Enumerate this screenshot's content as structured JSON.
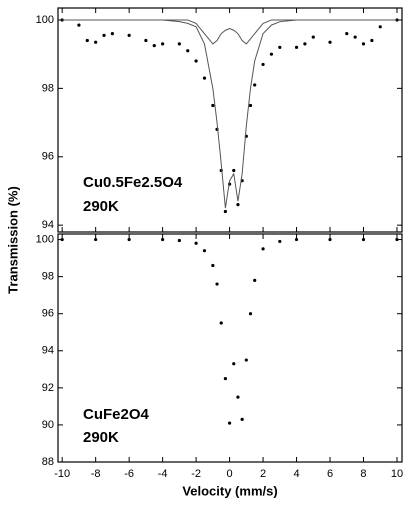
{
  "chart_data": [
    {
      "type": "scatter",
      "y_label": "Transmission (%)",
      "annotations": [
        "Cu0.5Fe2.5O4",
        "290K"
      ],
      "xlim": [
        -10.25,
        10.3
      ],
      "ylim": [
        93.8,
        100.35
      ],
      "yticks": [
        94,
        96,
        98,
        100
      ],
      "x": [
        -10,
        -9,
        -8.5,
        -8,
        -7.5,
        -7,
        -6,
        -5,
        -4.5,
        -4,
        -3,
        -2.5,
        -2,
        -1.5,
        -1,
        -0.75,
        -0.5,
        -0.25,
        0,
        0.25,
        0.5,
        0.75,
        1,
        1.25,
        1.5,
        2,
        2.5,
        3,
        4,
        4.5,
        5,
        6,
        7,
        7.5,
        8,
        8.5,
        9,
        10
      ],
      "series": [
        {
          "style": "points",
          "color": "#000000",
          "values": [
            100,
            99.85,
            99.4,
            99.35,
            99.55,
            99.6,
            99.55,
            99.4,
            99.25,
            99.3,
            99.3,
            99.1,
            98.8,
            98.3,
            97.5,
            96.8,
            95.6,
            94.4,
            95.2,
            95.6,
            94.6,
            95.3,
            96.6,
            97.5,
            98.1,
            98.7,
            99.0,
            99.2,
            99.2,
            99.3,
            99.5,
            99.35,
            99.6,
            99.5,
            99.3,
            99.4,
            99.8,
            100
          ]
        },
        {
          "style": "line",
          "color": "#555555",
          "values": [
            100,
            100,
            100,
            100,
            100,
            100,
            100,
            100,
            100,
            100,
            100,
            100,
            99.9,
            99.6,
            99.3,
            99.4,
            99.6,
            99.7,
            99.75,
            99.7,
            99.6,
            99.4,
            99.3,
            99.45,
            99.6,
            99.9,
            100,
            100,
            100,
            100,
            100,
            100,
            100,
            100,
            100,
            100,
            100,
            100
          ]
        },
        {
          "style": "line",
          "color": "#555555",
          "values": [
            100,
            100,
            100,
            100,
            100,
            100,
            100,
            100,
            100,
            100,
            99.95,
            99.9,
            99.8,
            99.3,
            98.0,
            97.0,
            95.8,
            94.5,
            95.3,
            95.5,
            94.7,
            95.5,
            96.9,
            98.0,
            98.8,
            99.6,
            99.85,
            99.95,
            100,
            100,
            100,
            100,
            100,
            100,
            100,
            100,
            100,
            100
          ]
        }
      ]
    },
    {
      "type": "scatter",
      "x_label": "Velocity (mm/s)",
      "annotations": [
        "CuFe2O4",
        "290K"
      ],
      "xlim": [
        -10.25,
        10.3
      ],
      "ylim": [
        88,
        100.3
      ],
      "xticks": [
        -10,
        -8,
        -6,
        -4,
        -2,
        0,
        2,
        4,
        6,
        8,
        10
      ],
      "yticks": [
        88,
        90,
        92,
        94,
        96,
        98,
        100
      ],
      "x": [
        -10,
        -8,
        -6,
        -4,
        -3,
        -2,
        -1.5,
        -1,
        -0.75,
        -0.5,
        -0.25,
        0,
        0.25,
        0.5,
        0.75,
        1,
        1.25,
        1.5,
        2,
        3,
        4,
        6,
        8,
        10
      ],
      "series": [
        {
          "style": "points",
          "color": "#000000",
          "values": [
            100,
            100,
            100,
            100,
            99.95,
            99.8,
            99.4,
            98.6,
            97.6,
            95.5,
            92.5,
            90.1,
            93.3,
            91.5,
            90.3,
            93.5,
            96,
            97.8,
            99.5,
            99.9,
            100,
            100,
            100,
            100
          ]
        }
      ]
    }
  ]
}
